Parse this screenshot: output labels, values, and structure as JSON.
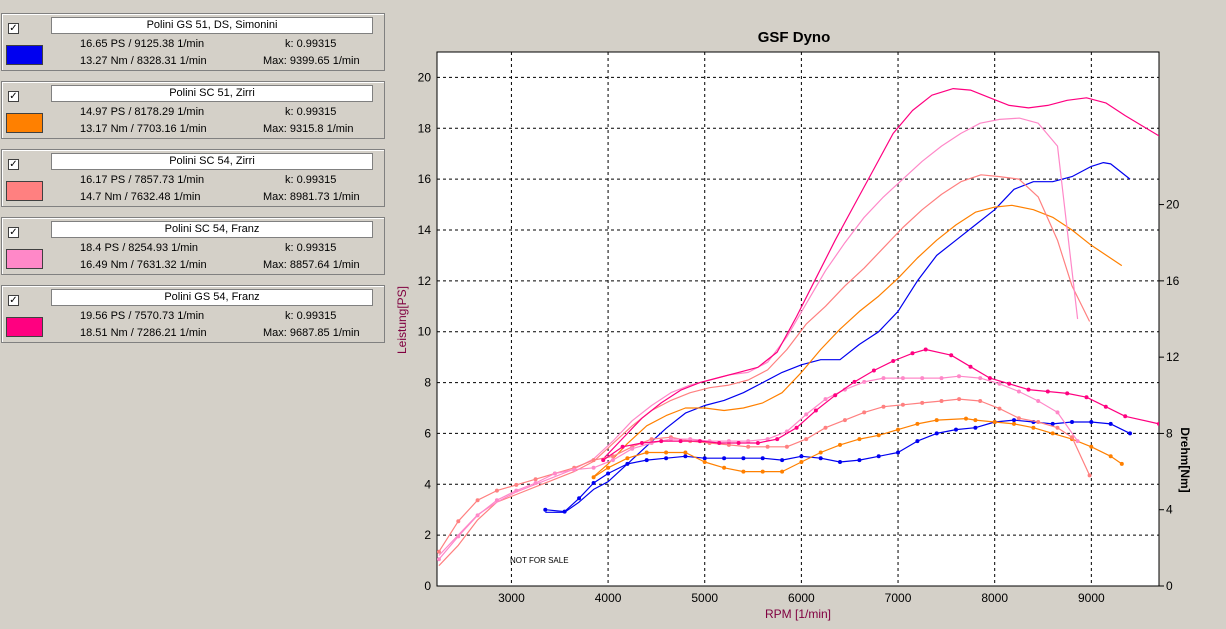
{
  "legend": [
    {
      "name": "Polini GS 51, DS, Simonini",
      "color": "#0000f0",
      "checked": "✓",
      "power": "16.65 PS / 9125.38 1/min",
      "torque": "13.27 Nm / 8328.31 1/min",
      "k": "k: 0.99315",
      "max": "Max: 9399.65 1/min"
    },
    {
      "name": "Polini SC 51, Zirri",
      "color": "#ff8000",
      "checked": "✓",
      "power": "14.97 PS / 8178.29 1/min",
      "torque": "13.17 Nm / 7703.16 1/min",
      "k": "k: 0.99315",
      "max": "Max: 9315.8 1/min"
    },
    {
      "name": "Polini SC 54, Zirri",
      "color": "#ff8080",
      "checked": "✓",
      "power": "16.17 PS / 7857.73 1/min",
      "torque": "14.7 Nm / 7632.48 1/min",
      "k": "k: 0.99315",
      "max": "Max: 8981.73 1/min"
    },
    {
      "name": "Polini SC 54, Franz",
      "color": "#ff88c8",
      "checked": "✓",
      "power": "18.4 PS / 8254.93 1/min",
      "torque": "16.49 Nm / 7631.32 1/min",
      "k": "k: 0.99315",
      "max": "Max: 8857.64 1/min"
    },
    {
      "name": "Polini GS 54, Franz",
      "color": "#ff0080",
      "checked": "✓",
      "power": "19.56 PS / 7570.73 1/min",
      "torque": "18.51 Nm / 7286.21 1/min",
      "k": "k: 0.99315",
      "max": "Max: 9687.85 1/min"
    }
  ],
  "chart_data": {
    "type": "line",
    "title": "GSF Dyno",
    "xlabel": "RPM [1/min]",
    "ylabel": "Leistung[PS]",
    "y2label": "Drehm[Nm]",
    "annotation": "NOT FOR SALE",
    "xlim": [
      2230,
      9700
    ],
    "ylim": [
      0,
      21
    ],
    "y2lim": [
      0,
      28
    ],
    "x_ticks": [
      3000,
      4000,
      5000,
      6000,
      7000,
      8000,
      9000
    ],
    "y_ticks": [
      0,
      2,
      4,
      6,
      8,
      10,
      12,
      14,
      16,
      18,
      20
    ],
    "y2_ticks": [
      0,
      4,
      8,
      12,
      16,
      20
    ],
    "grid": true,
    "power_series": [
      {
        "name": "Polini GS 51, DS, Simonini",
        "color": "#0000f0",
        "x": [
          3350,
          3550,
          3700,
          3850,
          4000,
          4200,
          4400,
          4600,
          4800,
          5000,
          5200,
          5400,
          5600,
          5800,
          6000,
          6200,
          6400,
          6600,
          6800,
          7000,
          7200,
          7400,
          7600,
          7800,
          8000,
          8200,
          8400,
          8600,
          8800,
          9000,
          9125,
          9200,
          9400
        ],
        "y": [
          2.9,
          2.9,
          3.3,
          3.8,
          4.1,
          4.8,
          5.5,
          6.2,
          6.8,
          7.1,
          7.3,
          7.6,
          8.0,
          8.4,
          8.7,
          8.9,
          8.9,
          9.5,
          10.0,
          10.8,
          12.0,
          13.0,
          13.6,
          14.2,
          14.8,
          15.6,
          15.9,
          15.9,
          16.1,
          16.5,
          16.65,
          16.6,
          16.0
        ]
      },
      {
        "name": "Polini SC 51, Zirri",
        "color": "#ff8000",
        "x": [
          3850,
          4000,
          4200,
          4400,
          4600,
          4800,
          5000,
          5200,
          5400,
          5600,
          5800,
          6000,
          6200,
          6400,
          6600,
          6800,
          7000,
          7200,
          7400,
          7600,
          7800,
          8000,
          8178,
          8400,
          8600,
          8800,
          9000,
          9315
        ],
        "y": [
          4.3,
          4.8,
          5.6,
          6.3,
          6.7,
          7.0,
          7.0,
          6.9,
          7.0,
          7.2,
          7.6,
          8.4,
          9.3,
          10.1,
          10.8,
          11.4,
          12.1,
          12.9,
          13.6,
          14.2,
          14.7,
          14.9,
          14.97,
          14.8,
          14.5,
          14.0,
          13.4,
          12.6
        ]
      },
      {
        "name": "Polini SC 54, Zirri",
        "color": "#ff8080",
        "x": [
          2250,
          2450,
          2650,
          2850,
          3050,
          3250,
          3450,
          3650,
          3850,
          4050,
          4250,
          4450,
          4650,
          4850,
          5050,
          5250,
          5450,
          5650,
          5850,
          6050,
          6250,
          6450,
          6650,
          6850,
          7050,
          7250,
          7450,
          7650,
          7858,
          8050,
          8250,
          8450,
          8650,
          8800,
          8982
        ],
        "y": [
          0.8,
          1.6,
          2.6,
          3.3,
          3.6,
          3.9,
          4.2,
          4.5,
          4.9,
          5.6,
          6.3,
          6.9,
          7.3,
          7.6,
          7.8,
          7.9,
          8.1,
          8.5,
          9.3,
          10.3,
          11.0,
          11.8,
          12.5,
          13.3,
          14.1,
          14.8,
          15.4,
          15.9,
          16.17,
          16.1,
          16.0,
          15.3,
          13.6,
          11.8,
          10.4
        ]
      },
      {
        "name": "Polini SC 54, Franz",
        "color": "#ff88c8",
        "x": [
          2250,
          2450,
          2650,
          2850,
          3050,
          3250,
          3450,
          3650,
          3850,
          4050,
          4250,
          4450,
          4650,
          4850,
          5050,
          5250,
          5450,
          5650,
          5850,
          6050,
          6250,
          6450,
          6650,
          6850,
          7050,
          7250,
          7450,
          7650,
          7850,
          8050,
          8255,
          8450,
          8650,
          8858
        ],
        "y": [
          1.2,
          2.0,
          2.8,
          3.3,
          3.7,
          4.0,
          4.3,
          4.6,
          5.0,
          5.7,
          6.5,
          7.1,
          7.6,
          7.9,
          8.1,
          8.3,
          8.4,
          8.8,
          9.8,
          11.1,
          12.4,
          13.5,
          14.5,
          15.3,
          16.0,
          16.7,
          17.3,
          17.8,
          18.2,
          18.35,
          18.4,
          18.2,
          17.3,
          10.5
        ]
      },
      {
        "name": "Polini GS 54, Franz",
        "color": "#ff0080",
        "x": [
          3950,
          4150,
          4350,
          4550,
          4750,
          4950,
          5150,
          5350,
          5550,
          5750,
          5950,
          6150,
          6350,
          6550,
          6750,
          6950,
          7150,
          7350,
          7571,
          7750,
          7950,
          8150,
          8350,
          8550,
          8750,
          8950,
          9150,
          9350,
          9700
        ],
        "y": [
          5.0,
          5.8,
          6.6,
          7.2,
          7.7,
          8.0,
          8.2,
          8.4,
          8.6,
          9.2,
          10.6,
          12.1,
          13.6,
          15.0,
          16.4,
          17.8,
          18.7,
          19.3,
          19.56,
          19.5,
          19.2,
          18.9,
          18.8,
          18.9,
          19.1,
          19.2,
          19.0,
          18.5,
          17.7
        ]
      }
    ],
    "torque_series": [
      {
        "name": "Polini GS 51, DS, Simonini",
        "color": "#0000f0",
        "x": [
          3350,
          3550,
          3700,
          3850,
          4000,
          4200,
          4400,
          4600,
          4800,
          5000,
          5200,
          5400,
          5600,
          5800,
          6000,
          6200,
          6400,
          6600,
          6800,
          7000,
          7200,
          7400,
          7600,
          7800,
          8000,
          8200,
          8400,
          8600,
          8800,
          9000,
          9200,
          9400
        ],
        "y": [
          4.0,
          3.9,
          4.6,
          5.4,
          5.9,
          6.4,
          6.6,
          6.7,
          6.8,
          6.7,
          6.7,
          6.7,
          6.7,
          6.6,
          6.8,
          6.7,
          6.5,
          6.6,
          6.8,
          7.0,
          7.6,
          8.0,
          8.2,
          8.3,
          8.6,
          8.7,
          8.6,
          8.5,
          8.6,
          8.6,
          8.5,
          8.0
        ]
      },
      {
        "name": "Polini SC 51, Zirri",
        "color": "#ff8000",
        "x": [
          3850,
          4000,
          4200,
          4400,
          4600,
          4800,
          5000,
          5200,
          5400,
          5600,
          5800,
          6000,
          6200,
          6400,
          6600,
          6800,
          7000,
          7200,
          7400,
          7703,
          7800,
          8000,
          8200,
          8400,
          8600,
          8800,
          9000,
          9200,
          9315
        ],
        "y": [
          5.7,
          6.2,
          6.7,
          7.0,
          7.0,
          7.0,
          6.5,
          6.2,
          6.0,
          6.0,
          6.0,
          6.5,
          7.0,
          7.4,
          7.7,
          7.9,
          8.2,
          8.5,
          8.7,
          8.78,
          8.7,
          8.6,
          8.5,
          8.3,
          8.0,
          7.7,
          7.3,
          6.8,
          6.4
        ]
      },
      {
        "name": "Polini SC 54, Zirri",
        "color": "#ff8080",
        "x": [
          2250,
          2450,
          2650,
          2850,
          3050,
          3250,
          3450,
          3650,
          3850,
          4050,
          4250,
          4450,
          4650,
          4850,
          5050,
          5250,
          5450,
          5650,
          5850,
          6050,
          6250,
          6450,
          6650,
          6850,
          7050,
          7250,
          7450,
          7632,
          7850,
          8050,
          8250,
          8450,
          8650,
          8800,
          8982
        ],
        "y": [
          1.8,
          3.4,
          4.5,
          5.0,
          5.3,
          5.6,
          5.9,
          6.2,
          6.6,
          6.8,
          7.3,
          7.7,
          7.8,
          7.6,
          7.5,
          7.4,
          7.3,
          7.3,
          7.3,
          7.7,
          8.3,
          8.7,
          9.1,
          9.4,
          9.5,
          9.6,
          9.7,
          9.8,
          9.7,
          9.3,
          8.8,
          8.6,
          8.3,
          7.8,
          5.8
        ]
      },
      {
        "name": "Polini SC 54, Franz",
        "color": "#ff88c8",
        "x": [
          2250,
          2450,
          2650,
          2850,
          3050,
          3250,
          3450,
          3650,
          3850,
          4050,
          4250,
          4450,
          4650,
          4850,
          5050,
          5250,
          5450,
          5650,
          5850,
          6050,
          6250,
          6450,
          6650,
          6850,
          7050,
          7250,
          7450,
          7631,
          7850,
          8050,
          8250,
          8450,
          8650,
          8858
        ],
        "y": [
          1.4,
          2.6,
          3.7,
          4.5,
          5.0,
          5.4,
          5.9,
          6.1,
          6.2,
          6.6,
          7.2,
          7.5,
          7.7,
          7.7,
          7.6,
          7.6,
          7.6,
          7.7,
          8.1,
          9.0,
          9.8,
          10.3,
          10.7,
          10.9,
          10.9,
          10.9,
          10.9,
          11.0,
          10.9,
          10.6,
          10.2,
          9.7,
          9.1,
          7.6
        ]
      },
      {
        "name": "Polini GS 54, Franz",
        "color": "#ff0080",
        "x": [
          3950,
          4150,
          4350,
          4550,
          4750,
          4950,
          5150,
          5350,
          5550,
          5750,
          5950,
          6150,
          6350,
          6550,
          6750,
          6950,
          7150,
          7286,
          7550,
          7750,
          7950,
          8150,
          8350,
          8550,
          8750,
          8950,
          9150,
          9350,
          9700
        ],
        "y": [
          6.6,
          7.3,
          7.5,
          7.6,
          7.6,
          7.6,
          7.5,
          7.5,
          7.5,
          7.7,
          8.3,
          9.2,
          10.0,
          10.7,
          11.3,
          11.8,
          12.2,
          12.4,
          12.1,
          11.5,
          10.9,
          10.6,
          10.3,
          10.2,
          10.1,
          9.9,
          9.4,
          8.9,
          8.5
        ]
      }
    ]
  }
}
